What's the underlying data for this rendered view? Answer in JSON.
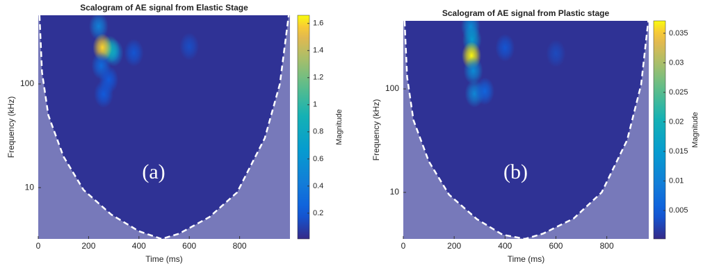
{
  "chart_data": [
    {
      "type": "heatmap",
      "title": "Scalogram of AE signal from Elastic Stage",
      "x_label": "Time (ms)",
      "y_label": "Frequency (kHz)",
      "panel_label": "(a)",
      "colorbar_label": "Magnitude",
      "log_y": true,
      "xlim": [
        0,
        1000
      ],
      "xticks": [
        0,
        200,
        400,
        600,
        800
      ],
      "ylim": [
        3.2,
        460
      ],
      "yticks": [
        10,
        100
      ],
      "clim": [
        0.01,
        1.66
      ],
      "cticks": [
        0.2,
        0.4,
        0.6,
        0.8,
        1,
        1.2,
        1.4,
        1.6
      ],
      "blobs": [
        {
          "x": 240,
          "y": 360,
          "value": 0.45
        },
        {
          "x": 300,
          "y": 200,
          "value": 0.55
        },
        {
          "x": 285,
          "y": 215,
          "value": 0.9
        },
        {
          "x": 255,
          "y": 225,
          "value": 1.6
        },
        {
          "x": 250,
          "y": 150,
          "value": 0.3
        },
        {
          "x": 260,
          "y": 80,
          "value": 0.2
        },
        {
          "x": 380,
          "y": 200,
          "value": 0.18
        },
        {
          "x": 600,
          "y": 230,
          "value": 0.15
        },
        {
          "x": 280,
          "y": 110,
          "value": 0.2
        }
      ],
      "coi": {
        "x": [
          5,
          15,
          40,
          100,
          180,
          290,
          400,
          490,
          560,
          680,
          790,
          900,
          960,
          995
        ],
        "y": [
          460,
          130,
          50,
          20,
          9.5,
          5.5,
          3.8,
          3.2,
          3.6,
          5.2,
          9,
          30,
          100,
          460
        ]
      }
    },
    {
      "type": "heatmap",
      "title": "Scalogram of AE signal from Plastic stage",
      "x_label": "Time (ms)",
      "y_label": "Frequency (kHz)",
      "panel_label": "(b)",
      "colorbar_label": "Magnitude",
      "log_y": true,
      "xlim": [
        0,
        965
      ],
      "xticks": [
        0,
        200,
        400,
        600,
        800
      ],
      "ylim": [
        3.55,
        455
      ],
      "yticks": [
        10,
        100
      ],
      "clim": [
        0.0002,
        0.0371
      ],
      "cticks": [
        0.005,
        0.01,
        0.015,
        0.02,
        0.025,
        0.03,
        0.035
      ],
      "blobs": [
        {
          "x": 265,
          "y": 400,
          "value": 0.012
        },
        {
          "x": 270,
          "y": 300,
          "value": 0.015
        },
        {
          "x": 268,
          "y": 210,
          "value": 0.037
        },
        {
          "x": 275,
          "y": 150,
          "value": 0.012
        },
        {
          "x": 280,
          "y": 90,
          "value": 0.011
        },
        {
          "x": 320,
          "y": 95,
          "value": 0.006
        },
        {
          "x": 400,
          "y": 250,
          "value": 0.004
        },
        {
          "x": 600,
          "y": 220,
          "value": 0.003
        }
      ],
      "coi": {
        "x": [
          5,
          15,
          40,
          100,
          180,
          290,
          390,
          478,
          550,
          670,
          780,
          880,
          935,
          963
        ],
        "y": [
          455,
          130,
          50,
          20,
          9.5,
          5.5,
          3.9,
          3.55,
          4,
          5.6,
          10,
          32,
          110,
          455
        ]
      }
    }
  ]
}
